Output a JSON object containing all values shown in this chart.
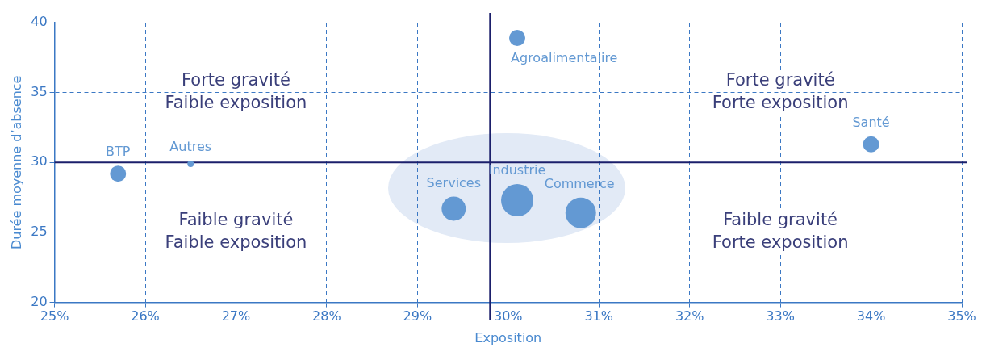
{
  "chart_data": {
    "type": "bubble",
    "xlabel": "Exposition",
    "ylabel": "Durée moyenne d’absence",
    "xlim": [
      25,
      35
    ],
    "xticks": [
      {
        "value": 25,
        "label": "25%"
      },
      {
        "value": 26,
        "label": "26%"
      },
      {
        "value": 27,
        "label": "27%"
      },
      {
        "value": 28,
        "label": "28%"
      },
      {
        "value": 29,
        "label": "29%"
      },
      {
        "value": 30,
        "label": "30%"
      },
      {
        "value": 31,
        "label": "31%"
      },
      {
        "value": 32,
        "label": "32%"
      },
      {
        "value": 33,
        "label": "33%"
      },
      {
        "value": 34,
        "label": "34%"
      },
      {
        "value": 35,
        "label": "35%"
      }
    ],
    "ylim": [
      20,
      40
    ],
    "yticks": [
      20,
      25,
      30,
      35,
      40
    ],
    "series": [
      {
        "name": "BTP",
        "color": "#6399d3",
        "x": [
          25.7
        ],
        "values": [
          29.2
        ],
        "sizes": [
          0.25
        ]
      },
      {
        "name": "Autres",
        "color": "#6399d3",
        "x": [
          26.5
        ],
        "values": [
          29.9
        ],
        "sizes": [
          0.04
        ]
      },
      {
        "name": "Services",
        "color": "#6399d3",
        "x": [
          29.4
        ],
        "values": [
          26.7
        ],
        "sizes": [
          0.56
        ]
      },
      {
        "name": "Industrie",
        "color": "#6399d3",
        "x": [
          30.1
        ],
        "values": [
          27.3
        ],
        "sizes": [
          1
        ]
      },
      {
        "name": "Commerce",
        "color": "#6399d3",
        "x": [
          30.8
        ],
        "values": [
          26.4
        ],
        "sizes": [
          0.9
        ]
      },
      {
        "name": "Agroalimentaiire",
        "color": "#6399d3",
        "x": [
          30.1
        ],
        "values": [
          38.9
        ],
        "sizes": [
          0.25
        ]
      },
      {
        "name": "Santé",
        "color": "#6399d3",
        "x": [
          34.0
        ],
        "values": [
          31.3
        ],
        "sizes": [
          0.25
        ]
      }
    ],
    "ref_lines": [
      {
        "axis": "x",
        "value": 29.8,
        "color": "#1b1f6b"
      },
      {
        "axis": "y",
        "value": 30,
        "color": "#1b1f6b"
      }
    ],
    "annotations": [
      "Forte gravité\nFaible exposition",
      "Forte gravité\nForte exposition",
      "Faible gravité\nFaible exposition",
      "Faible gravité\nForte exposition"
    ],
    "grid": true,
    "legend": false
  }
}
